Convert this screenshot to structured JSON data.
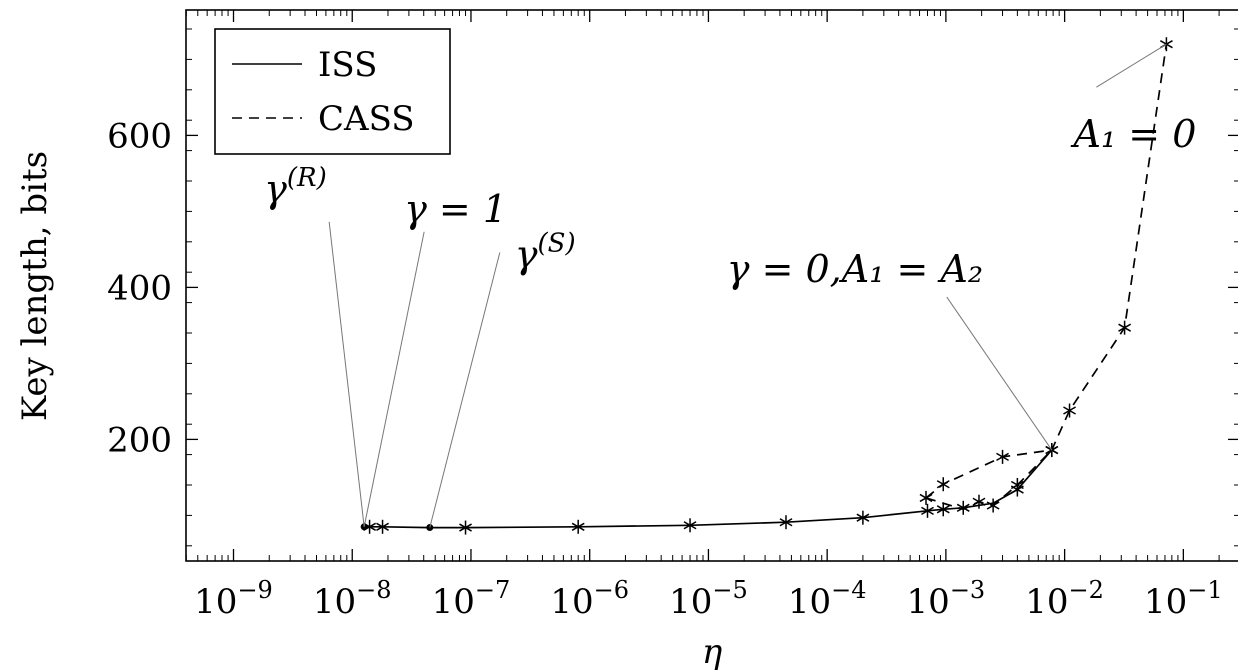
{
  "chart_data": {
    "type": "line",
    "xscale": "log",
    "xlim": [
      3.98e-10,
      0.3
    ],
    "ylim": [
      40,
      765
    ],
    "xlabel": "η",
    "ylabel": "Key length, bits",
    "x_ticks": [
      {
        "value": 1e-09,
        "base": "10",
        "exp": "−9"
      },
      {
        "value": 1e-08,
        "base": "10",
        "exp": "−8"
      },
      {
        "value": 1e-07,
        "base": "10",
        "exp": "−7"
      },
      {
        "value": 1e-06,
        "base": "10",
        "exp": "−6"
      },
      {
        "value": 1e-05,
        "base": "10",
        "exp": "−5"
      },
      {
        "value": 0.0001,
        "base": "10",
        "exp": "−4"
      },
      {
        "value": 0.001,
        "base": "10",
        "exp": "−3"
      },
      {
        "value": 0.01,
        "base": "10",
        "exp": "−2"
      },
      {
        "value": 0.1,
        "base": "10",
        "exp": "−1"
      }
    ],
    "y_ticks": [
      200,
      400,
      600
    ],
    "grid": false,
    "legend_position": "top-left",
    "series": [
      {
        "name": "ISS",
        "style": "solid",
        "points": [
          {
            "x": 1.26e-08,
            "y": 85
          },
          {
            "x": 1.4e-08,
            "y": 85
          },
          {
            "x": 1.8e-08,
            "y": 85
          },
          {
            "x": 4.5e-08,
            "y": 84
          },
          {
            "x": 9e-08,
            "y": 84
          },
          {
            "x": 8e-07,
            "y": 85
          },
          {
            "x": 7e-06,
            "y": 87
          },
          {
            "x": 4.5e-05,
            "y": 91
          },
          {
            "x": 0.0002,
            "y": 97
          },
          {
            "x": 0.0007,
            "y": 106
          },
          {
            "x": 0.00095,
            "y": 108
          },
          {
            "x": 0.0014,
            "y": 110
          },
          {
            "x": 0.0025,
            "y": 116
          },
          {
            "x": 0.004,
            "y": 134
          },
          {
            "x": 0.0078,
            "y": 186
          }
        ],
        "marked": [
          false,
          true,
          true,
          false,
          true,
          true,
          true,
          true,
          true,
          true,
          true,
          true,
          false,
          true,
          true
        ]
      },
      {
        "name": "CASS",
        "style": "dashed",
        "points": [
          {
            "x": 0.00068,
            "y": 123
          },
          {
            "x": 0.00095,
            "y": 141
          },
          {
            "x": 0.003,
            "y": 177
          },
          {
            "x": 0.0078,
            "y": 186
          },
          {
            "x": 0.011,
            "y": 238
          },
          {
            "x": 0.032,
            "y": 347
          },
          {
            "x": 0.072,
            "y": 720
          }
        ],
        "marked": [
          true,
          true,
          true,
          true,
          true,
          true,
          true
        ]
      },
      {
        "name": "",
        "style": "dashed",
        "points": [
          {
            "x": 0.00068,
            "y": 123
          },
          {
            "x": 0.0014,
            "y": 108
          },
          {
            "x": 0.0019,
            "y": 118
          },
          {
            "x": 0.0025,
            "y": 113
          },
          {
            "x": 0.004,
            "y": 140
          },
          {
            "x": 0.0078,
            "y": 186
          }
        ],
        "marked": [
          false,
          false,
          true,
          true,
          true,
          false
        ]
      }
    ],
    "dots": [
      {
        "x": 1.26e-08,
        "y": 85
      },
      {
        "x": 4.5e-08,
        "y": 84
      }
    ],
    "annotations": [
      {
        "id": "gamma-r",
        "main": "γ",
        "sup": "(R)",
        "at": {
          "x": 1.26e-08,
          "y": 85
        }
      },
      {
        "id": "gamma-1",
        "main": "γ = 1",
        "sup": "",
        "at": {
          "x": 1.26e-08,
          "y": 85
        }
      },
      {
        "id": "gamma-s",
        "main": "γ",
        "sup": "(S)",
        "at": {
          "x": 4.5e-08,
          "y": 84
        }
      },
      {
        "id": "gamma0-a1a2",
        "main": "γ = 0,A₁ = A₂",
        "sup": "",
        "at": {
          "x": 0.0078,
          "y": 186
        }
      },
      {
        "id": "a1-zero",
        "main": "A₁ = 0",
        "sup": "",
        "at": {
          "x": 0.072,
          "y": 720
        }
      }
    ]
  }
}
